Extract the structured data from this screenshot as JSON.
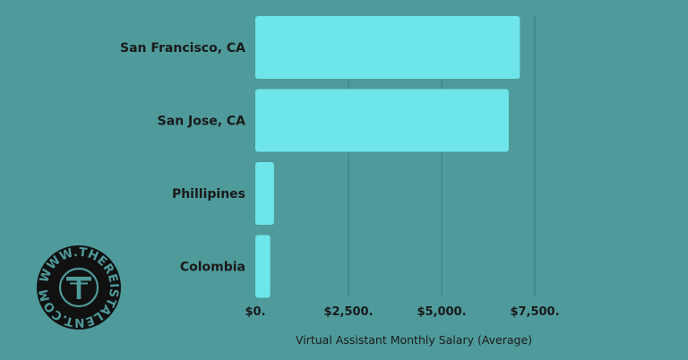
{
  "colors": {
    "background": "#4f9a9b",
    "bar": "#6ee6e9",
    "grid": "#3e7f80",
    "text": "#1a1a1a",
    "logo_bg": "#111111"
  },
  "logo": {
    "text": "WWW.THEREISTALENT.COM",
    "monogram": "T"
  },
  "chart_data": {
    "type": "bar",
    "orientation": "horizontal",
    "categories": [
      "San Francisco, CA",
      "San Jose, CA",
      "Phillipines",
      "Colombia"
    ],
    "values": [
      7100,
      6800,
      500,
      400
    ],
    "xlabel": "Virtual Assistant Monthly Salary (Average)",
    "ylabel": "",
    "xlim": [
      0,
      7500
    ],
    "xticks": [
      0,
      2500,
      5000,
      7500
    ],
    "xtick_labels": [
      "$0.",
      "$2,500.",
      "$5,000.",
      "$7,500."
    ],
    "grid": true
  }
}
